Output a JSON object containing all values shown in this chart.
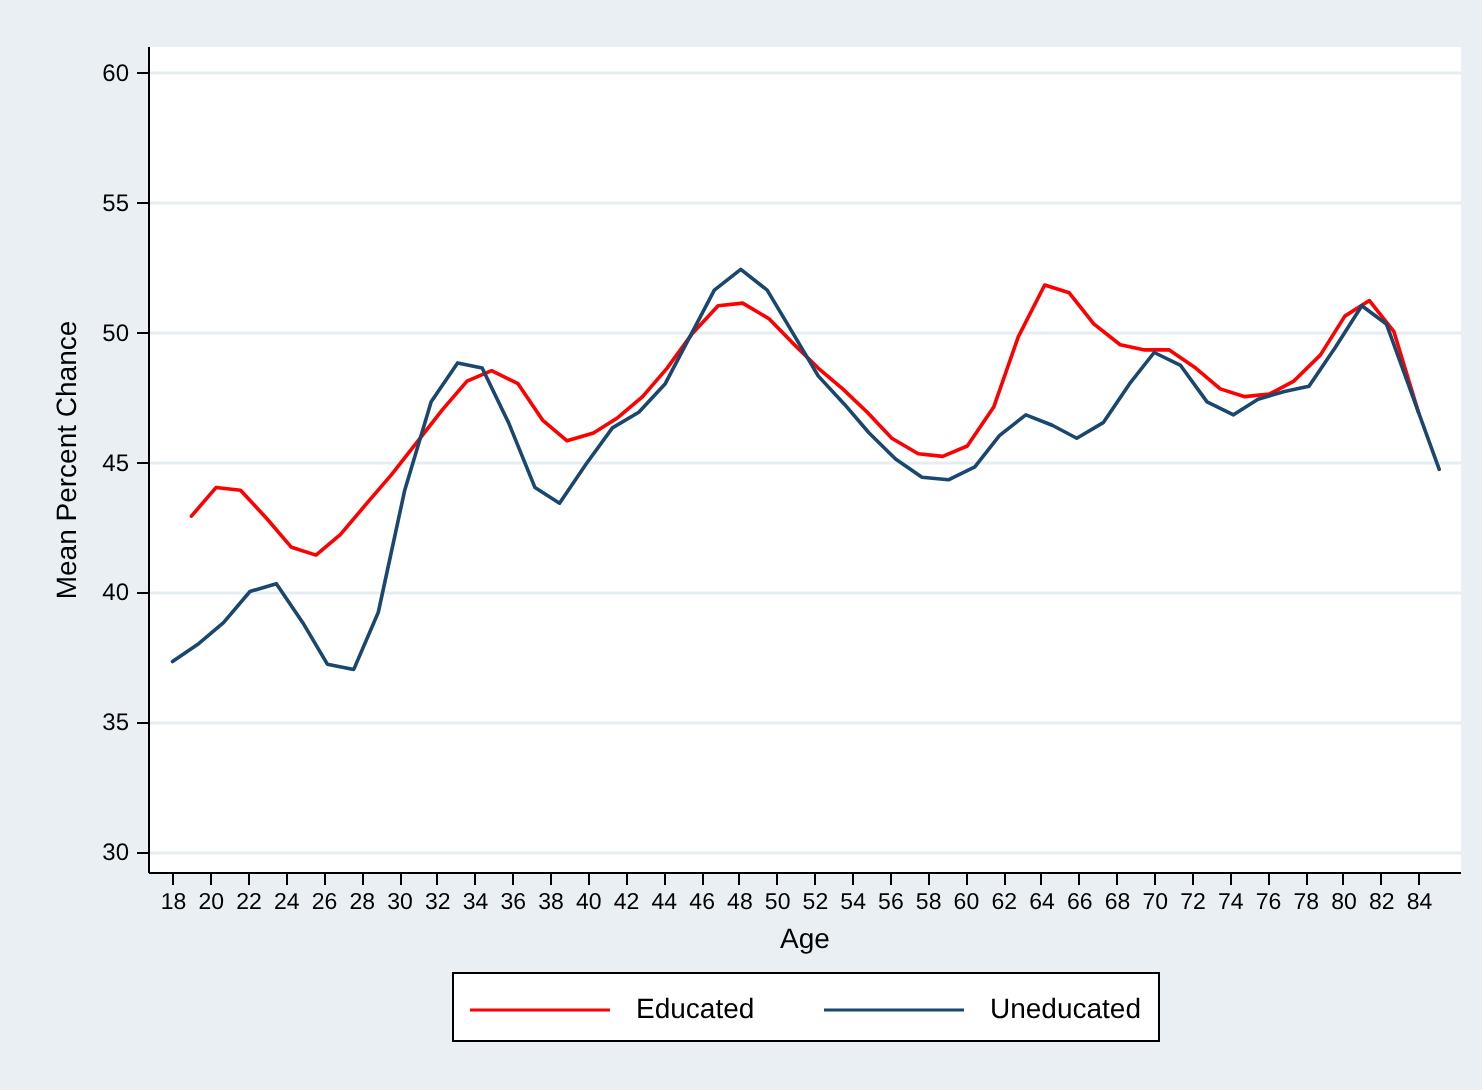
{
  "chart_data": {
    "type": "line",
    "xlabel": "Age",
    "ylabel": "Mean Percent Chance",
    "xlim": [
      16.7,
      86.2
    ],
    "ylim": [
      29.2,
      61
    ],
    "xticks": [
      18,
      20,
      22,
      24,
      26,
      28,
      30,
      32,
      34,
      36,
      38,
      40,
      42,
      44,
      46,
      48,
      50,
      52,
      54,
      56,
      58,
      60,
      62,
      64,
      66,
      68,
      70,
      72,
      74,
      76,
      78,
      80,
      82,
      84
    ],
    "yticks": [
      30,
      35,
      40,
      45,
      50,
      55,
      60
    ],
    "grid": "y",
    "legend": "bottom",
    "line_style": "solid",
    "series": [
      {
        "name": "Educated",
        "color": "#ff0000",
        "x": [
          19.0,
          20.3,
          21.6,
          23.0,
          24.3,
          25.6,
          26.9,
          28.3,
          29.6,
          30.9,
          32.3,
          33.6,
          34.9,
          36.3,
          37.6,
          38.9,
          40.3,
          41.6,
          42.9,
          44.2,
          45.5,
          46.9,
          48.2,
          49.6,
          50.8,
          52.2,
          53.5,
          54.8,
          56.1,
          57.5,
          58.8,
          60.1,
          61.5,
          62.8,
          64.2,
          65.5,
          66.8,
          68.2,
          69.5,
          70.8,
          72.2,
          73.5,
          74.8,
          76.1,
          77.4,
          78.8,
          80.1,
          81.4,
          82.7,
          84.0
        ],
        "values": [
          42.9,
          44.0,
          43.9,
          42.8,
          41.7,
          41.4,
          42.2,
          43.4,
          44.5,
          45.7,
          47.0,
          48.1,
          48.5,
          48.0,
          46.6,
          45.8,
          46.1,
          46.7,
          47.5,
          48.6,
          49.9,
          51.0,
          51.1,
          50.5,
          49.6,
          48.6,
          47.8,
          46.9,
          45.9,
          45.3,
          45.2,
          45.6,
          47.1,
          49.8,
          51.8,
          51.5,
          50.3,
          49.5,
          49.3,
          49.3,
          48.6,
          47.8,
          47.5,
          47.6,
          48.1,
          49.1,
          50.6,
          51.2,
          50.0,
          46.9
        ]
      },
      {
        "name": "Uneducated",
        "color": "#1a476f",
        "x": [
          18.0,
          19.4,
          20.7,
          22.1,
          23.5,
          24.9,
          26.2,
          27.6,
          28.9,
          30.3,
          31.7,
          33.1,
          34.4,
          35.8,
          37.2,
          38.5,
          39.9,
          41.3,
          42.7,
          44.1,
          45.4,
          46.7,
          48.1,
          49.5,
          50.9,
          52.2,
          53.6,
          54.9,
          56.3,
          57.7,
          59.1,
          60.5,
          61.8,
          63.2,
          64.6,
          65.9,
          67.3,
          68.7,
          70.0,
          71.4,
          72.8,
          74.2,
          75.5,
          76.9,
          78.2,
          79.6,
          81.0,
          82.3,
          83.7,
          85.1
        ],
        "values": [
          37.3,
          38.0,
          38.8,
          40.0,
          40.3,
          38.8,
          37.2,
          37.0,
          39.2,
          43.9,
          47.3,
          48.8,
          48.6,
          46.5,
          44.0,
          43.4,
          44.9,
          46.3,
          46.9,
          48.0,
          49.8,
          51.6,
          52.4,
          51.6,
          49.9,
          48.3,
          47.2,
          46.1,
          45.1,
          44.4,
          44.3,
          44.8,
          46.0,
          46.8,
          46.4,
          45.9,
          46.5,
          48.0,
          49.2,
          48.7,
          47.3,
          46.8,
          47.4,
          47.7,
          47.9,
          49.4,
          51.0,
          50.3,
          47.5,
          44.7
        ]
      }
    ]
  }
}
